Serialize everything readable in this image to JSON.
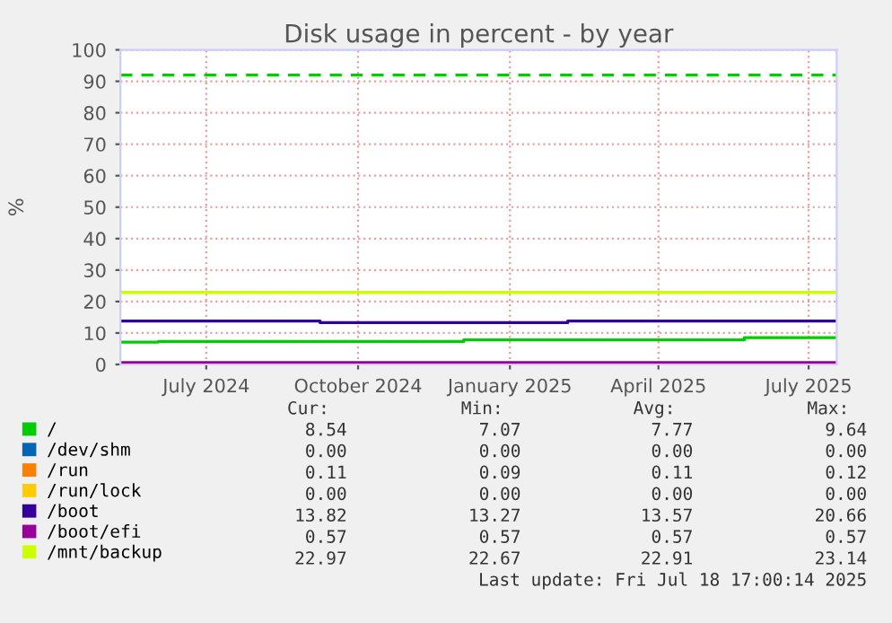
{
  "chart_data": {
    "type": "step",
    "title": "Disk usage in percent - by year",
    "ylabel": "%",
    "xlim": [
      "2024-05-10",
      "2025-07-18"
    ],
    "xticks": [
      {
        "value": "2024-07-01",
        "label": "July 2024"
      },
      {
        "value": "2024-10-01",
        "label": "October 2024"
      },
      {
        "value": "2025-01-01",
        "label": "January 2025"
      },
      {
        "value": "2025-04-01",
        "label": "April 2025"
      },
      {
        "value": "2025-07-01",
        "label": "July 2025"
      }
    ],
    "ylim": [
      0,
      100
    ],
    "yticks": [
      0,
      10,
      20,
      30,
      40,
      50,
      60,
      70,
      80,
      90,
      100
    ],
    "grid": true,
    "legend": "bottom",
    "series": [
      {
        "name": "/",
        "color": "#00cc00",
        "x": [
          "2024-05-10",
          "2024-06-02",
          "2024-12-04",
          "2025-05-23",
          "2025-07-17"
        ],
        "values": [
          7.1,
          7.3,
          7.8,
          8.5,
          8.5
        ]
      },
      {
        "name": "/dev/shm",
        "color": "#0066b3"
      },
      {
        "name": "/run",
        "color": "#ff8000"
      },
      {
        "name": "/run/lock",
        "color": "#ffcc00"
      },
      {
        "name": "/boot",
        "color": "#330099",
        "x": [
          "2024-05-10",
          "2024-09-08",
          "2025-02-05",
          "2025-07-17"
        ],
        "values": [
          13.8,
          13.3,
          13.8,
          13.8
        ]
      },
      {
        "name": "/boot/efi",
        "color": "#990099",
        "x": [
          "2024-05-10",
          "2025-07-17"
        ],
        "values": [
          0.6,
          0.6
        ]
      },
      {
        "name": "/mnt/backup",
        "color": "#ccff00",
        "x": [
          "2024-05-10",
          "2025-07-17"
        ],
        "values": [
          22.9,
          22.9
        ]
      }
    ],
    "ref_lines": [
      {
        "axis": "y",
        "value": 92,
        "color": "#00cc00",
        "line_style": "dashed"
      }
    ],
    "annotations": [
      "Cur:",
      "Min:",
      "Avg:",
      "Max:",
      "8.54",
      "7.07",
      "7.77",
      "9.64",
      "0.00",
      "0.00",
      "0.00",
      "0.00",
      "0.11",
      "0.09",
      "0.11",
      "0.12",
      "0.00",
      "0.00",
      "0.00",
      "0.00",
      "13.82",
      "13.27",
      "13.57",
      "20.66",
      "0.57",
      "0.57",
      "0.57",
      "0.57",
      "22.97",
      "22.67",
      "22.91",
      "23.14",
      "Last update: Fri Jul 18 17:00:14 2025"
    ]
  }
}
